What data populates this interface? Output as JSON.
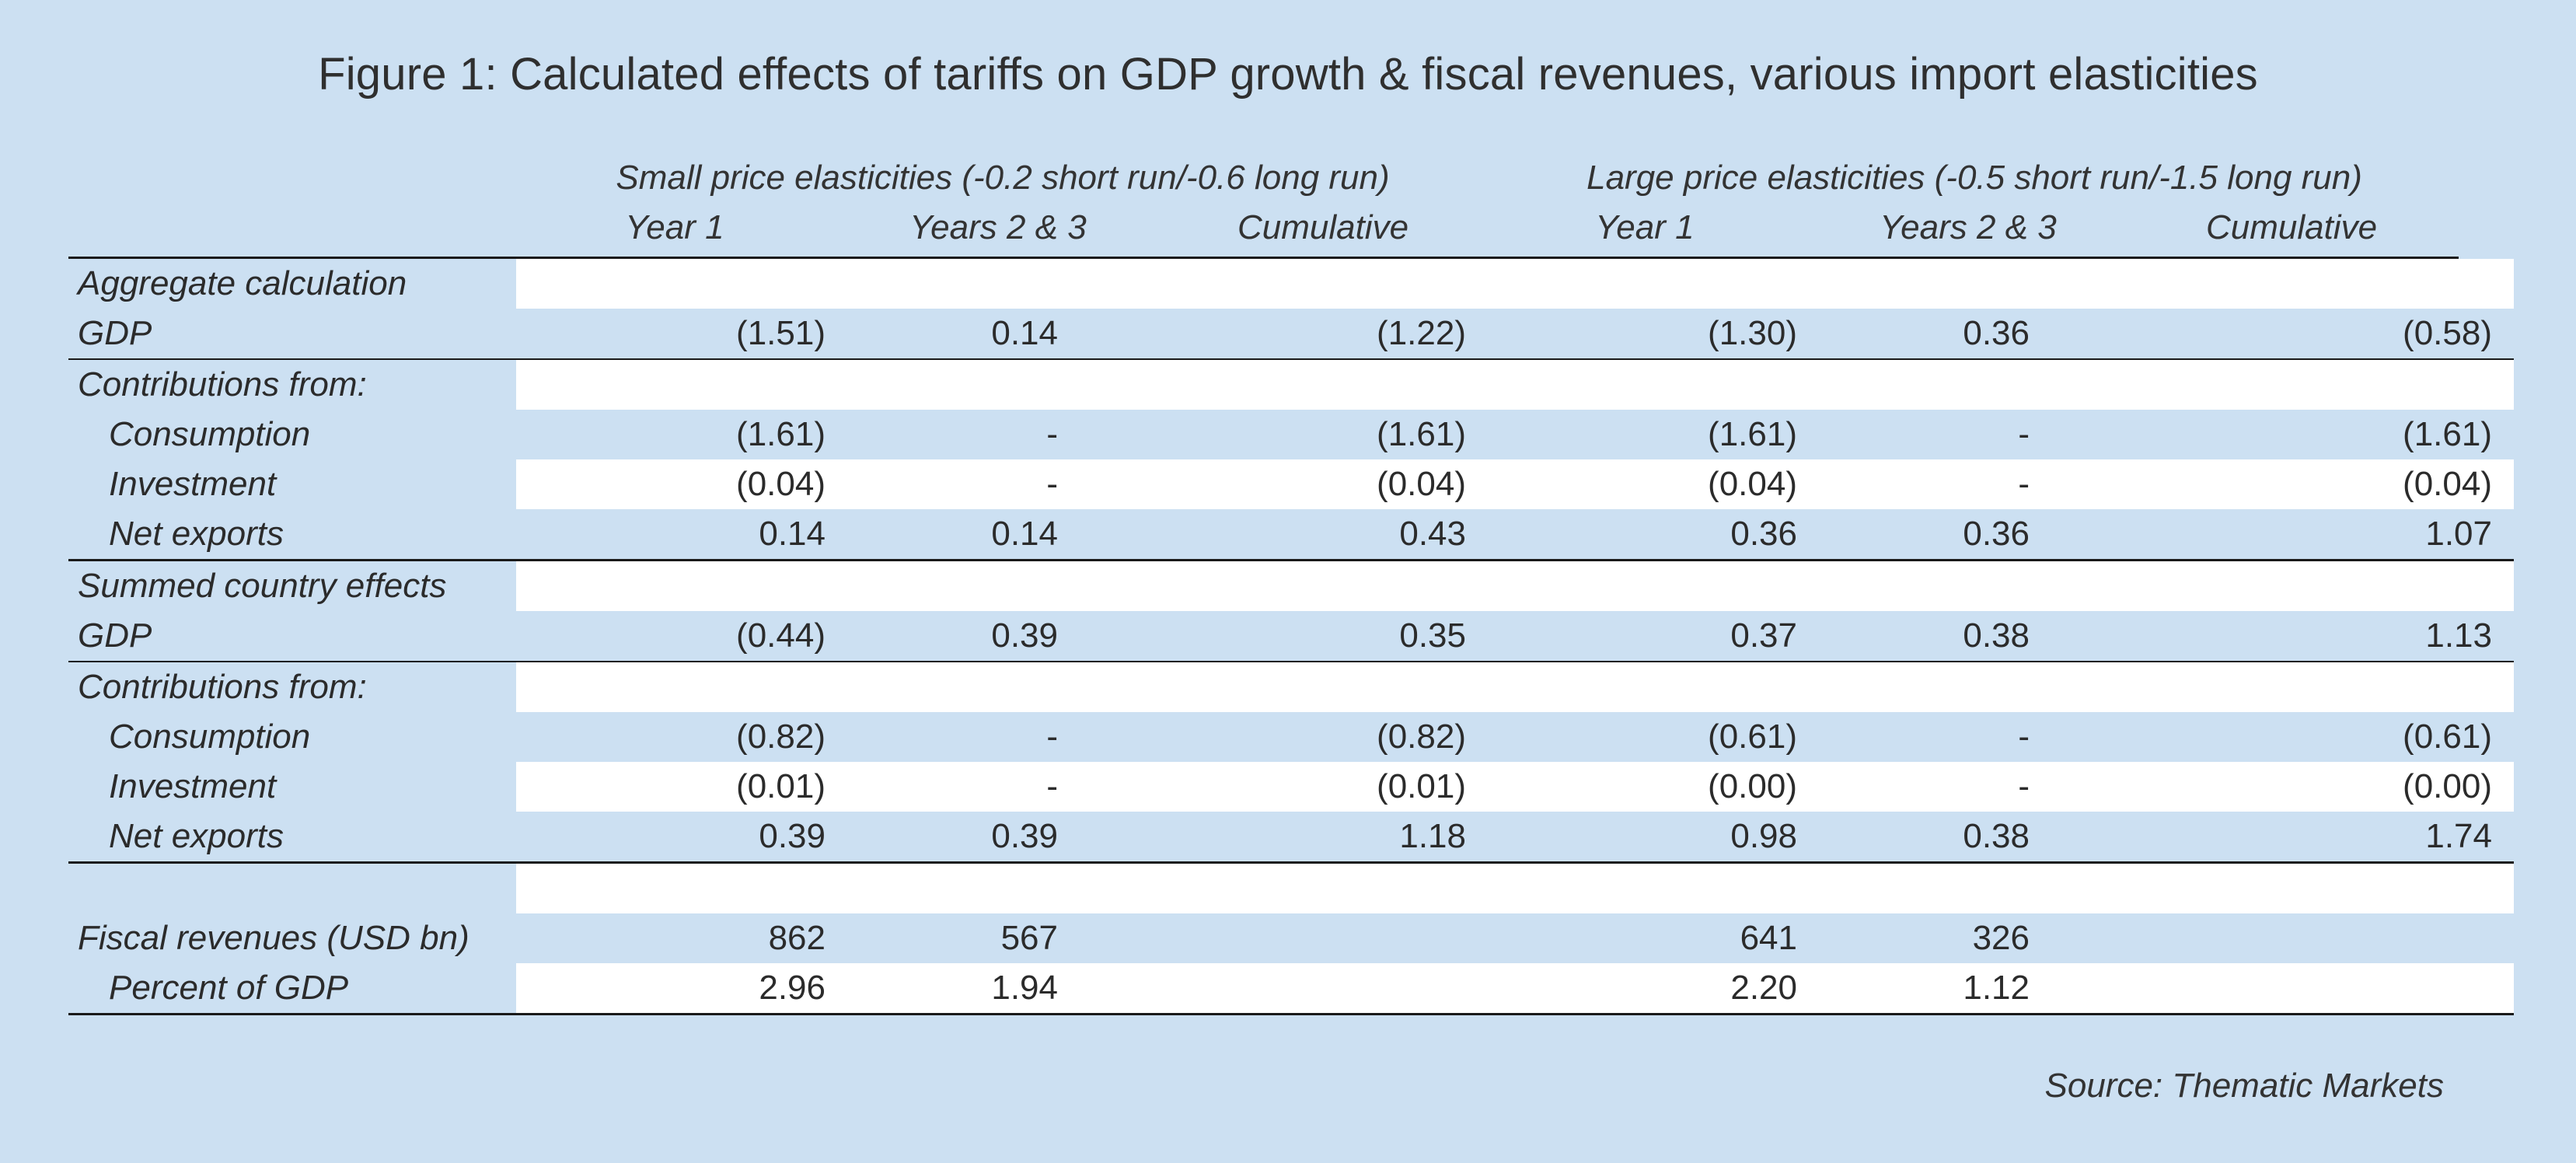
{
  "title": "Figure 1: Calculated effects of tariffs on GDP growth & fiscal revenues, various import elasticities",
  "groups": [
    "Small price elasticities (-0.2 short run/-0.6 long run)",
    "Large price elasticities (-0.5 short run/-1.5 long run)"
  ],
  "columns": [
    "Year 1",
    "Years 2 & 3",
    "Cumulative",
    "Year 1",
    "Years 2 & 3",
    "Cumulative"
  ],
  "rows": [
    {
      "label": "Aggregate calculation",
      "values": [
        "",
        "",
        "",
        "",
        "",
        ""
      ]
    },
    {
      "label": "GDP",
      "values": [
        "(1.51)",
        "0.14",
        "(1.22)",
        "(1.30)",
        "0.36",
        "(0.58)"
      ]
    },
    {
      "label": "Contributions from:",
      "values": [
        "",
        "",
        "",
        "",
        "",
        ""
      ]
    },
    {
      "label": "Consumption",
      "values": [
        "(1.61)",
        "-",
        "(1.61)",
        "(1.61)",
        "-",
        "(1.61)"
      ]
    },
    {
      "label": "Investment",
      "values": [
        "(0.04)",
        "-",
        "(0.04)",
        "(0.04)",
        "-",
        "(0.04)"
      ]
    },
    {
      "label": "Net exports",
      "values": [
        "0.14",
        "0.14",
        "0.43",
        "0.36",
        "0.36",
        "1.07"
      ]
    },
    {
      "label": "Summed country effects",
      "values": [
        "",
        "",
        "",
        "",
        "",
        ""
      ]
    },
    {
      "label": "GDP",
      "values": [
        "(0.44)",
        "0.39",
        "0.35",
        "0.37",
        "0.38",
        "1.13"
      ]
    },
    {
      "label": "Contributions from:",
      "values": [
        "",
        "",
        "",
        "",
        "",
        ""
      ]
    },
    {
      "label": "Consumption",
      "values": [
        "(0.82)",
        "-",
        "(0.82)",
        "(0.61)",
        "-",
        "(0.61)"
      ]
    },
    {
      "label": "Investment",
      "values": [
        "(0.01)",
        "-",
        "(0.01)",
        "(0.00)",
        "-",
        "(0.00)"
      ]
    },
    {
      "label": "Net exports",
      "values": [
        "0.39",
        "0.39",
        "1.18",
        "0.98",
        "0.38",
        "1.74"
      ]
    },
    {
      "label": "",
      "values": [
        "",
        "",
        "",
        "",
        "",
        ""
      ]
    },
    {
      "label": "Fiscal revenues (USD bn)",
      "values": [
        "862",
        "567",
        "",
        "641",
        "326",
        ""
      ]
    },
    {
      "label": "Percent of GDP",
      "values": [
        "2.96",
        "1.94",
        "",
        "2.20",
        "1.12",
        ""
      ]
    }
  ],
  "source": "Source: Thematic Markets"
}
